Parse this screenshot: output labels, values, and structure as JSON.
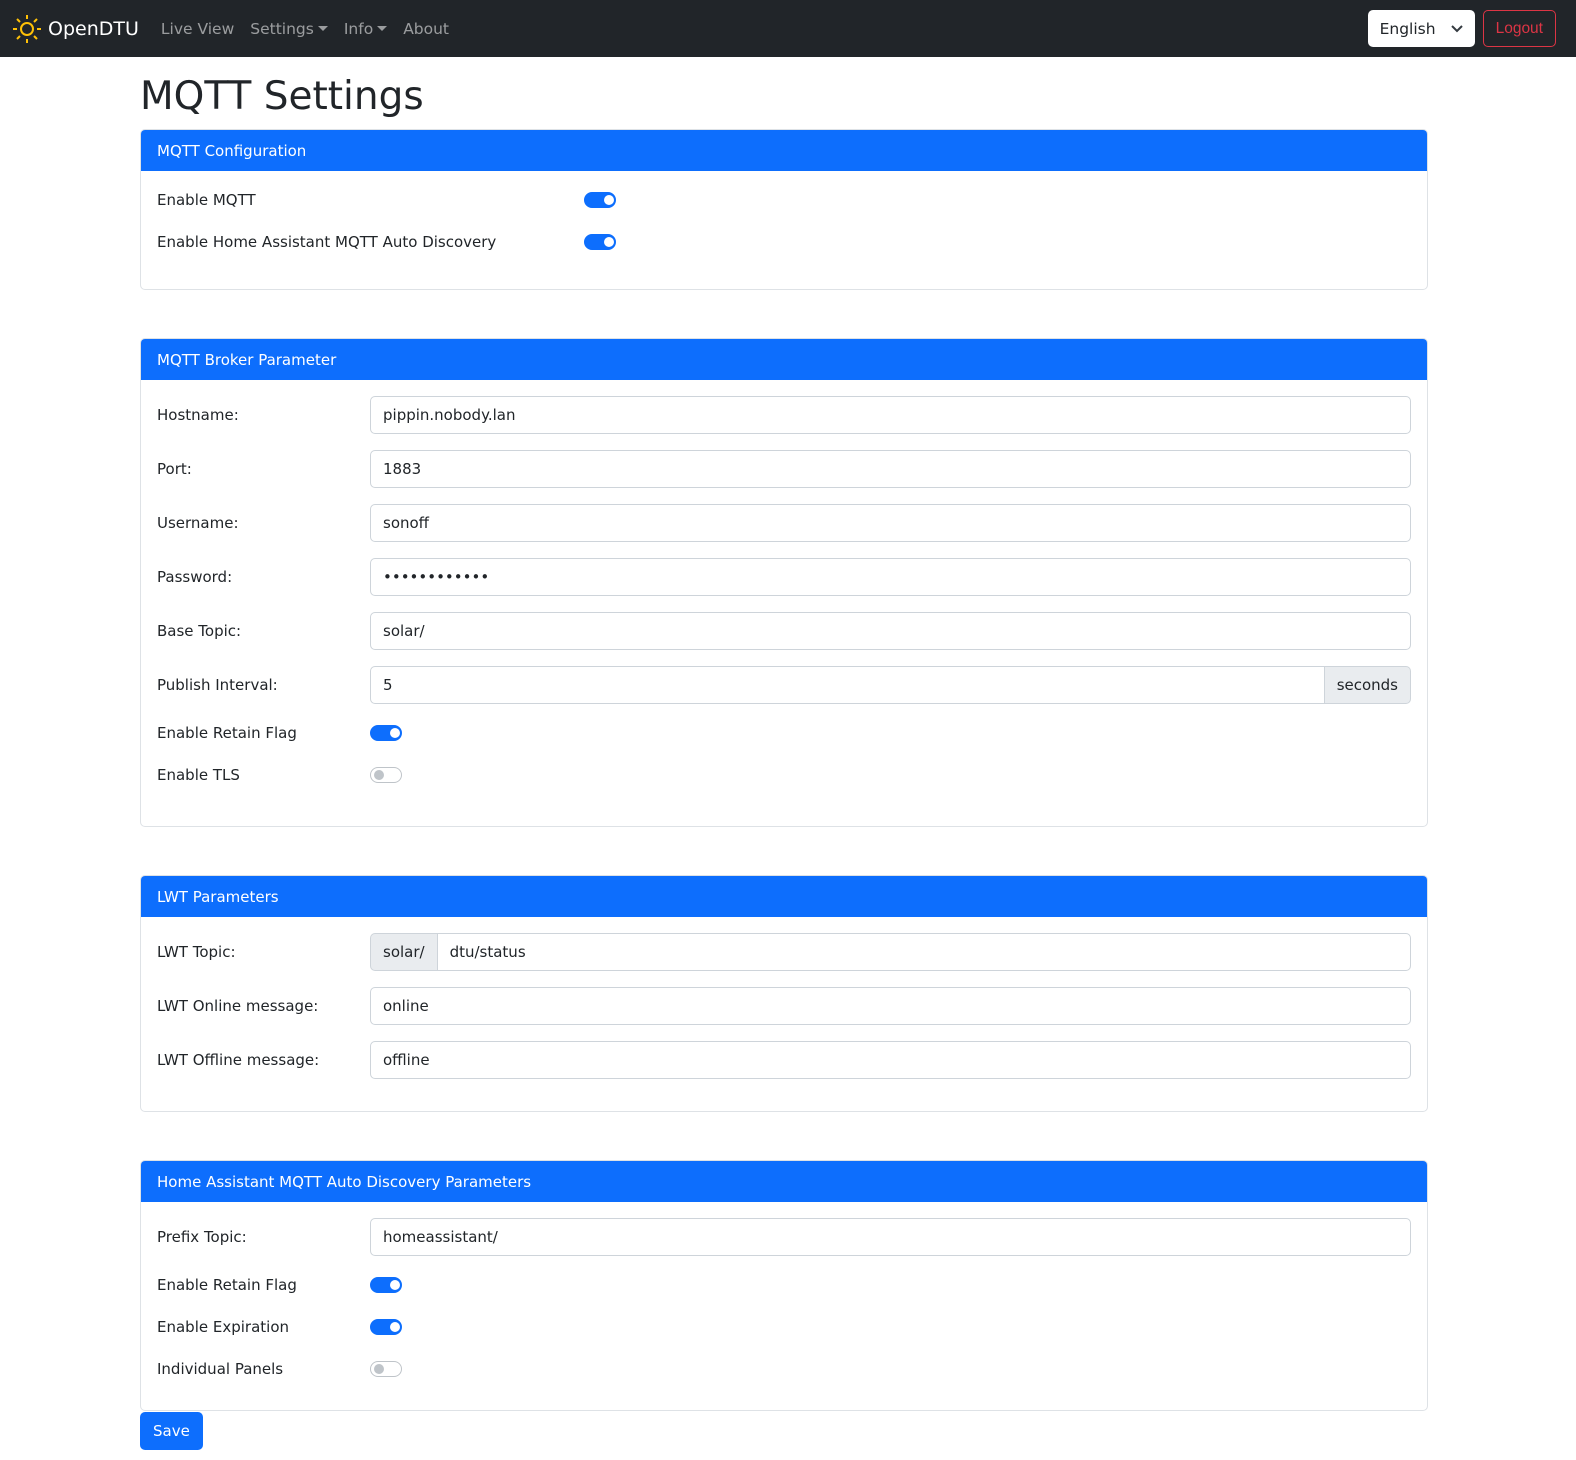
{
  "nav": {
    "brand": "OpenDTU",
    "items": [
      {
        "label": "Live View",
        "dropdown": false
      },
      {
        "label": "Settings",
        "dropdown": true
      },
      {
        "label": "Info",
        "dropdown": true
      },
      {
        "label": "About",
        "dropdown": false
      }
    ],
    "language": "English",
    "logout": "Logout"
  },
  "page_title": "MQTT Settings",
  "config": {
    "title": "MQTT Configuration",
    "switches": [
      {
        "label": "Enable MQTT",
        "on": true
      },
      {
        "label": "Enable Home Assistant MQTT Auto Discovery",
        "on": true
      }
    ]
  },
  "broker": {
    "title": "MQTT Broker Parameter",
    "hostname_label": "Hostname:",
    "hostname": "pippin.nobody.lan",
    "port_label": "Port:",
    "port": "1883",
    "username_label": "Username:",
    "username": "sonoff",
    "password_label": "Password:",
    "password": "************",
    "base_topic_label": "Base Topic:",
    "base_topic": "solar/",
    "interval_label": "Publish Interval:",
    "interval": "5",
    "interval_unit": "seconds",
    "retain_label": "Enable Retain Flag",
    "retain": true,
    "tls_label": "Enable TLS",
    "tls": false
  },
  "lwt": {
    "title": "LWT Parameters",
    "topic_label": "LWT Topic:",
    "topic_prefix": "solar/",
    "topic": "dtu/status",
    "online_label": "LWT Online message:",
    "online": "online",
    "offline_label": "LWT Offline message:",
    "offline": "offline"
  },
  "ha": {
    "title": "Home Assistant MQTT Auto Discovery Parameters",
    "prefix_label": "Prefix Topic:",
    "prefix": "homeassistant/",
    "retain_label": "Enable Retain Flag",
    "retain": true,
    "expiration_label": "Enable Expiration",
    "expiration": true,
    "panels_label": "Individual Panels",
    "panels": false
  },
  "save": "Save"
}
